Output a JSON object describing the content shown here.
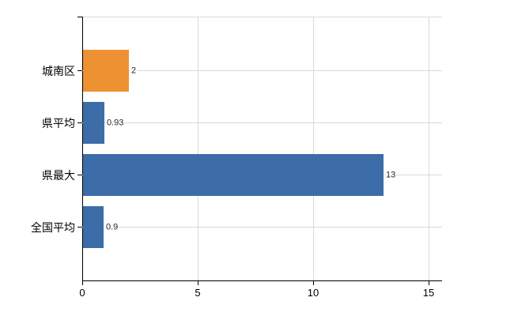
{
  "chart_data": {
    "type": "bar",
    "orientation": "horizontal",
    "title": "",
    "categories": [
      "城南区",
      "県平均",
      "県最大",
      "全国平均"
    ],
    "values": [
      2,
      0.93,
      13,
      0.9
    ],
    "value_labels": [
      "2",
      "0.93",
      "13",
      "0.9"
    ],
    "bar_colors": [
      "#ee9133",
      "#3d6da9",
      "#3d6da9",
      "#3d6da9"
    ],
    "x_ticks": [
      0,
      5,
      10,
      15
    ],
    "x_tick_labels": [
      "0",
      "5",
      "10",
      "15"
    ],
    "xlim": [
      0,
      15.55
    ],
    "grid": true,
    "gridline_color": "#d9d9d9",
    "axis_color": "#000000",
    "value_label_color": "#262626",
    "category_label_color": "#000000",
    "legend": "none",
    "background_color": "#ffffff"
  }
}
